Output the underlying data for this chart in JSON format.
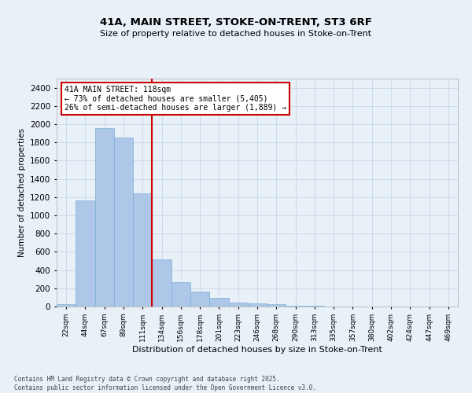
{
  "title_line1": "41A, MAIN STREET, STOKE-ON-TRENT, ST3 6RF",
  "title_line2": "Size of property relative to detached houses in Stoke-on-Trent",
  "xlabel": "Distribution of detached houses by size in Stoke-on-Trent",
  "ylabel": "Number of detached properties",
  "bar_labels": [
    "22sqm",
    "44sqm",
    "67sqm",
    "89sqm",
    "111sqm",
    "134sqm",
    "156sqm",
    "178sqm",
    "201sqm",
    "223sqm",
    "246sqm",
    "268sqm",
    "290sqm",
    "313sqm",
    "335sqm",
    "357sqm",
    "380sqm",
    "402sqm",
    "424sqm",
    "447sqm",
    "469sqm"
  ],
  "bar_values": [
    30,
    1165,
    1960,
    1850,
    1240,
    515,
    270,
    160,
    95,
    45,
    35,
    30,
    10,
    5,
    2,
    1,
    1,
    0,
    0,
    0,
    0
  ],
  "bar_color": "#aec6e8",
  "bar_edgecolor": "#7bafd4",
  "property_line_x": 4.5,
  "property_label": "41A MAIN STREET: 118sqm",
  "annotation_line1": "← 73% of detached houses are smaller (5,405)",
  "annotation_line2": "26% of semi-detached houses are larger (1,889) →",
  "annotation_box_color": "#ffffff",
  "annotation_box_edgecolor": "#cc0000",
  "vline_color": "#cc0000",
  "ylim": [
    0,
    2500
  ],
  "yticks": [
    0,
    200,
    400,
    600,
    800,
    1000,
    1200,
    1400,
    1600,
    1800,
    2000,
    2200,
    2400
  ],
  "grid_color": "#c8d8e8",
  "bg_color": "#e8f0f8",
  "footer_line1": "Contains HM Land Registry data © Crown copyright and database right 2025.",
  "footer_line2": "Contains public sector information licensed under the Open Government Licence v3.0."
}
